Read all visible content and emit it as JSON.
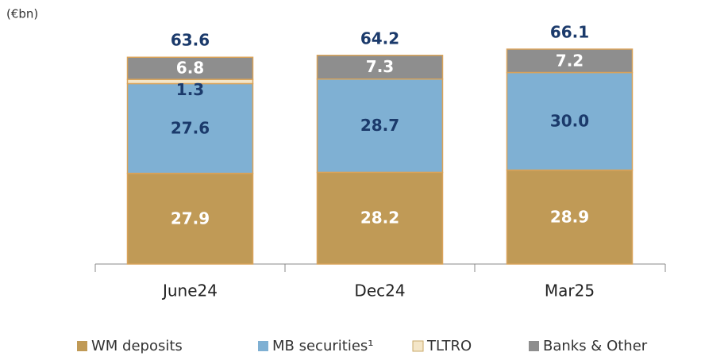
{
  "chart_data": {
    "type": "stacked_bar",
    "unit": "(€bn)",
    "categories": [
      "June24",
      "Dec24",
      "Mar25"
    ],
    "series": [
      {
        "name": "WM deposits",
        "color": "#c09a56",
        "values": [
          27.9,
          28.2,
          28.9
        ]
      },
      {
        "name": "MB securities¹",
        "color": "#7fb0d3",
        "values": [
          27.6,
          28.7,
          30.0
        ],
        "value_labels": [
          "27.6",
          "28.7",
          "30.0"
        ]
      },
      {
        "name": "TLTRO",
        "color": "#f4e6c8",
        "values": [
          1.3,
          null,
          null
        ]
      },
      {
        "name": "Banks & Other",
        "color": "#8e8e8e",
        "values": [
          6.8,
          7.3,
          7.2
        ]
      }
    ],
    "totals": [
      63.6,
      64.2,
      66.1
    ]
  }
}
